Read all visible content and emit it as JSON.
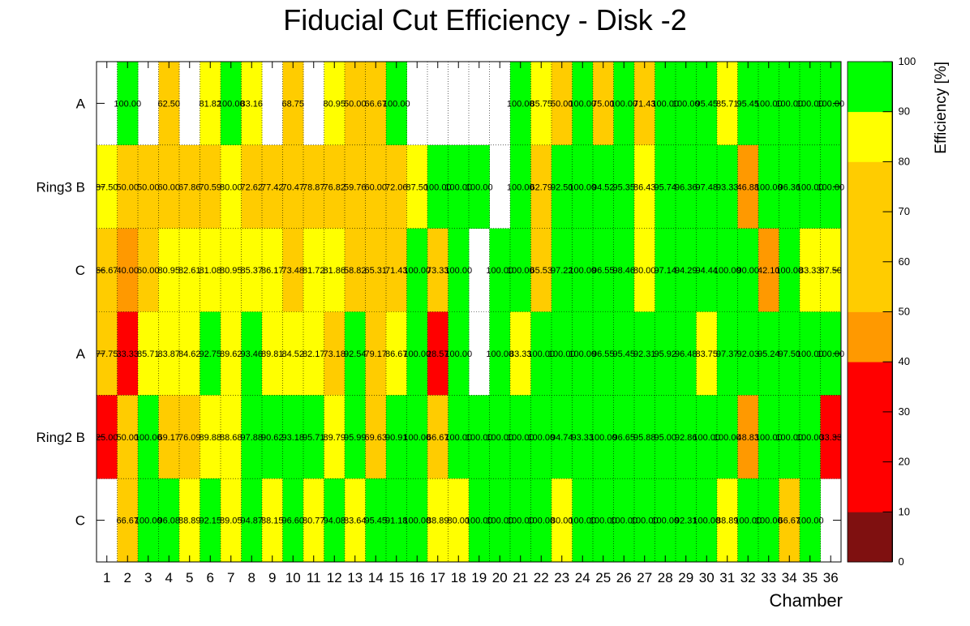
{
  "chart_data": {
    "type": "heatmap",
    "title": "Fiducial Cut Efficiency - Disk -2",
    "xlabel": "Chamber",
    "zlabel": "Efficiency [%]",
    "x_categories": [
      "1",
      "2",
      "3",
      "4",
      "5",
      "6",
      "7",
      "8",
      "9",
      "10",
      "11",
      "12",
      "13",
      "14",
      "15",
      "16",
      "17",
      "18",
      "19",
      "20",
      "21",
      "22",
      "23",
      "24",
      "25",
      "26",
      "27",
      "28",
      "29",
      "30",
      "31",
      "32",
      "33",
      "34",
      "35",
      "36"
    ],
    "y_labels": [
      "A",
      "Ring3 B",
      "C",
      "A",
      "Ring2 B",
      "C"
    ],
    "zlim": [
      0,
      100
    ],
    "z_ticks": [
      "0",
      "10",
      "20",
      "30",
      "40",
      "50",
      "60",
      "70",
      "80",
      "90",
      "100"
    ],
    "palette": [
      "#7f1010",
      "#ff0000",
      "#ff0000",
      "#ff9900",
      "#ffcc00",
      "#ffcc00",
      "#ffff00",
      "#00ff00"
    ],
    "rows": [
      [
        null,
        100.0,
        null,
        62.5,
        null,
        81.82,
        100.0,
        83.16,
        null,
        68.75,
        null,
        80.95,
        50.0,
        66.67,
        100.0,
        null,
        null,
        null,
        null,
        null,
        100.0,
        85.75,
        50.0,
        100.0,
        75.0,
        100.0,
        71.43,
        100.0,
        100.0,
        95.45,
        85.71,
        95.45,
        100.0,
        100.0,
        100.0,
        100.0
      ],
      [
        87.5,
        50.0,
        50.0,
        60.0,
        67.86,
        70.59,
        80.0,
        72.62,
        77.42,
        70.47,
        78.87,
        76.82,
        59.76,
        60.0,
        72.06,
        87.5,
        100.0,
        100.0,
        100.0,
        null,
        100.0,
        62.79,
        92.5,
        100.0,
        94.52,
        95.35,
        86.43,
        95.74,
        96.36,
        97.48,
        93.33,
        46.88,
        100.0,
        96.36,
        100.0,
        100.0
      ],
      [
        66.67,
        40.0,
        60.0,
        80.95,
        82.61,
        81.08,
        80.95,
        85.37,
        86.17,
        73.48,
        81.72,
        81.86,
        58.82,
        65.31,
        71.43,
        100.0,
        73.33,
        100.0,
        null,
        100.0,
        100.0,
        65.53,
        97.22,
        100.0,
        96.55,
        98.46,
        80.0,
        97.14,
        94.29,
        94.44,
        100.0,
        90.0,
        42.1,
        100.0,
        83.33,
        87.5
      ],
      [
        77.75,
        33.33,
        85.71,
        83.87,
        84.62,
        92.75,
        89.62,
        93.46,
        89.81,
        84.52,
        82.17,
        73.18,
        92.54,
        79.17,
        86.67,
        100.0,
        28.57,
        100.0,
        null,
        100.0,
        83.33,
        100.0,
        100.0,
        100.0,
        96.55,
        95.45,
        92.31,
        95.92,
        96.48,
        83.75,
        97.37,
        92.03,
        95.24,
        97.5,
        100.0,
        100.0
      ],
      [
        25.0,
        50.0,
        100.0,
        69.17,
        76.09,
        89.88,
        88.68,
        97.88,
        90.62,
        93.18,
        95.71,
        89.79,
        95.99,
        69.63,
        90.91,
        100.0,
        66.67,
        100.0,
        100.0,
        100.0,
        100.0,
        100.0,
        94.74,
        93.33,
        100.0,
        96.65,
        95.88,
        95.0,
        92.86,
        100.0,
        100.0,
        48.83,
        100.0,
        100.0,
        100.0,
        33.33
      ],
      [
        null,
        66.67,
        100.0,
        96.08,
        88.89,
        92.15,
        89.05,
        94.87,
        88.15,
        96.6,
        80.77,
        94.08,
        83.64,
        95.45,
        91.18,
        100.0,
        88.89,
        80.0,
        100.0,
        100.0,
        100.0,
        100.0,
        80.0,
        100.0,
        100.0,
        100.0,
        100.0,
        100.0,
        92.31,
        100.0,
        88.89,
        100.0,
        100.0,
        66.67,
        100.0,
        null
      ]
    ]
  }
}
